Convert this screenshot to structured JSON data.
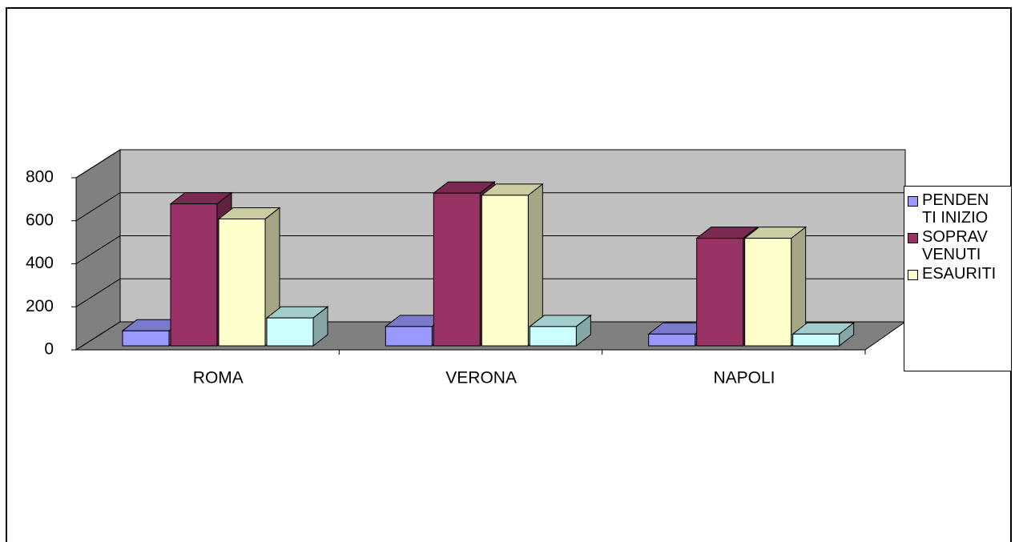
{
  "chart_data": {
    "type": "bar3d",
    "categories": [
      "ROMA",
      "VERONA",
      "NAPOLI"
    ],
    "series": [
      {
        "name": "PENDENTI INIZIO",
        "color": "#9999ff",
        "values": [
          70,
          90,
          55
        ]
      },
      {
        "name": "SOPRAVVENUTI",
        "color": "#993366",
        "values": [
          660,
          710,
          500
        ]
      },
      {
        "name": "ESAURITI",
        "color": "#ffffcc",
        "values": [
          590,
          700,
          500
        ]
      },
      {
        "name": null,
        "color": "#ccffff",
        "values": [
          130,
          90,
          55
        ]
      }
    ],
    "ylim": [
      0,
      800
    ],
    "yticks": [
      0,
      200,
      400,
      600,
      800
    ],
    "grid": true,
    "legend": "right"
  }
}
